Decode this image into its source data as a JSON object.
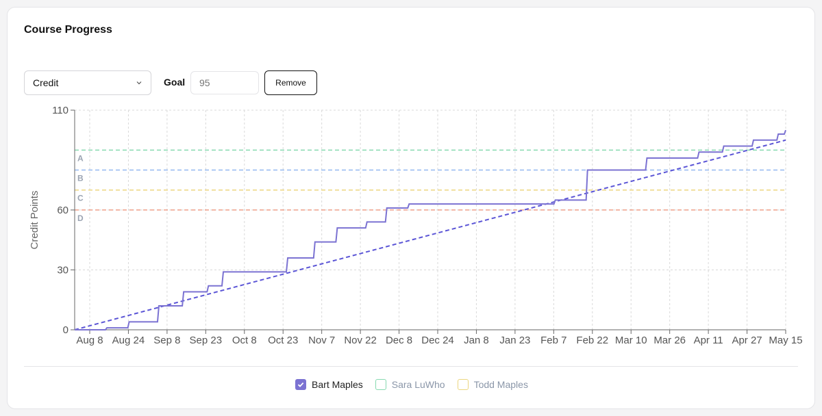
{
  "card": {
    "title": "Course Progress"
  },
  "controls": {
    "metric_select": {
      "value": "Credit",
      "icon": "chevron-down-icon"
    },
    "goal_label": "Goal",
    "goal_input": {
      "value": "",
      "placeholder": "95"
    },
    "remove_label": "Remove"
  },
  "chart_data": {
    "type": "line",
    "ylabel": "Credit Points",
    "xlabel": "",
    "yticks": [
      0,
      30,
      60,
      110
    ],
    "ylim": [
      0,
      110
    ],
    "x_tick_labels": [
      "Aug 8",
      "Aug 24",
      "Sep 8",
      "Sep 23",
      "Oct 8",
      "Oct 23",
      "Nov 7",
      "Nov 22",
      "Dec 8",
      "Dec 24",
      "Jan 8",
      "Jan 23",
      "Feb 7",
      "Feb 22",
      "Mar 10",
      "Mar 26",
      "Apr 11",
      "Apr 27",
      "May 15"
    ],
    "x_range": [
      "2023-08-02",
      "2024-05-15"
    ],
    "grid": true,
    "thresholds": [
      {
        "label": "A",
        "value": 90,
        "color": "#86d9b0"
      },
      {
        "label": "B",
        "value": 80,
        "color": "#93b8f0"
      },
      {
        "label": "C",
        "value": 70,
        "color": "#ecd67f"
      },
      {
        "label": "D",
        "value": 60,
        "color": "#f0a08a"
      }
    ],
    "goal_line": {
      "from": [
        "2023-08-02",
        0
      ],
      "to": [
        "2024-05-15",
        95
      ],
      "color": "#5b55d6",
      "style": "dashed"
    },
    "series": [
      {
        "name": "Bart Maples",
        "color": "#7b72d2",
        "step": true,
        "points": [
          [
            "2023-08-02",
            0
          ],
          [
            "2023-08-15",
            1
          ],
          [
            "2023-08-24",
            4
          ],
          [
            "2023-09-05",
            12
          ],
          [
            "2023-09-15",
            19
          ],
          [
            "2023-09-25",
            22
          ],
          [
            "2023-10-01",
            29
          ],
          [
            "2023-10-27",
            36
          ],
          [
            "2023-11-07",
            44
          ],
          [
            "2023-11-16",
            51
          ],
          [
            "2023-11-28",
            54
          ],
          [
            "2023-12-06",
            61
          ],
          [
            "2023-12-15",
            63
          ],
          [
            "2024-02-07",
            63
          ],
          [
            "2024-02-12",
            65
          ],
          [
            "2024-02-25",
            80
          ],
          [
            "2024-03-20",
            86
          ],
          [
            "2024-04-10",
            89
          ],
          [
            "2024-04-20",
            92
          ],
          [
            "2024-05-02",
            95
          ],
          [
            "2024-05-12",
            98
          ],
          [
            "2024-05-15",
            100
          ]
        ]
      }
    ]
  },
  "legend": [
    {
      "name": "Bart Maples",
      "checked": true,
      "color": "#7b72d2"
    },
    {
      "name": "Sara LuWho",
      "checked": false,
      "color": "#86d9b0"
    },
    {
      "name": "Todd Maples",
      "checked": false,
      "color": "#ecd67f"
    }
  ]
}
